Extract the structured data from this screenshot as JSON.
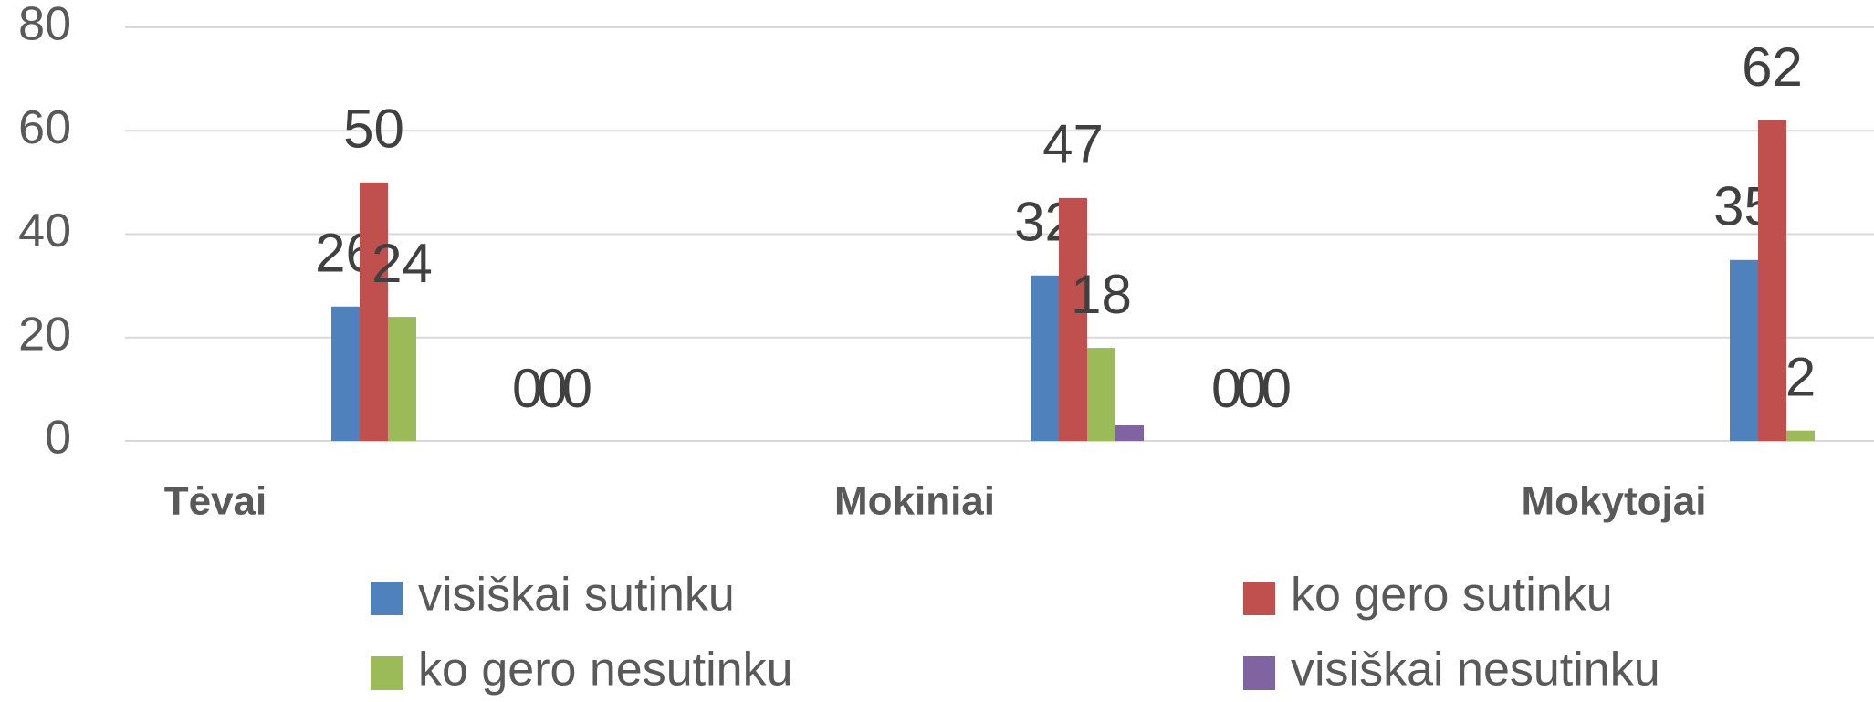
{
  "chart_data": {
    "type": "bar",
    "categories": [
      "Tėvai",
      "Mokiniai",
      "Mokytojai"
    ],
    "series": [
      {
        "name": "visiškai sutinku",
        "color": "#4f81bd",
        "values": [
          26,
          32,
          35
        ]
      },
      {
        "name": "ko gero sutinku",
        "color": "#c0504d",
        "values": [
          50,
          47,
          62
        ]
      },
      {
        "name": "ko gero nesutinku",
        "color": "#9bbb59",
        "values": [
          24,
          18,
          2
        ]
      },
      {
        "name": "visiškai nesutinku",
        "color": "#8064a2",
        "values": [
          null,
          3,
          null
        ]
      }
    ],
    "annotations": [
      "000",
      "000"
    ],
    "ylim": [
      0,
      80
    ],
    "yticks": [
      0,
      20,
      40,
      60,
      80
    ],
    "grid": true
  }
}
